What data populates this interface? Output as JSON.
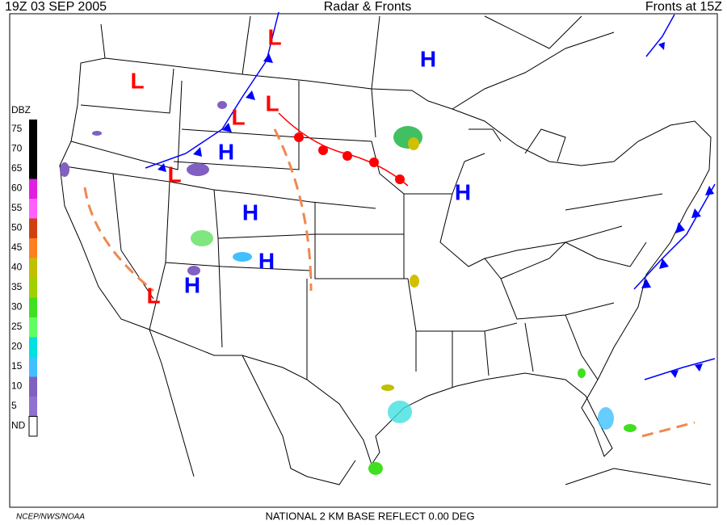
{
  "header": {
    "time": "19Z  03 SEP  2005",
    "title": "Radar & Fronts",
    "fronts": "Fronts at 15Z"
  },
  "legend": {
    "title": "DBZ",
    "labels": [
      75,
      70,
      65,
      60,
      55,
      50,
      45,
      40,
      35,
      30,
      25,
      20,
      15,
      10,
      5,
      "ND"
    ],
    "colors": [
      "#000000",
      "#000000",
      "#000000",
      "#e020e0",
      "#ff60ff",
      "#d04010",
      "#ff7f20",
      "#c0c000",
      "#a0d000",
      "#40e020",
      "#60ff60",
      "#00e0e0",
      "#40c0ff",
      "#8060c0",
      "#9070d0",
      "#ffffff"
    ]
  },
  "centers": [
    {
      "label": "L"
    },
    {
      "label": "L"
    },
    {
      "label": "L"
    },
    {
      "label": "L"
    },
    {
      "label": "L"
    },
    {
      "label": "L"
    },
    {
      "label": "H"
    },
    {
      "label": "H"
    },
    {
      "label": "H"
    },
    {
      "label": "H"
    },
    {
      "label": "H"
    },
    {
      "label": "H"
    }
  ],
  "footer": {
    "credit": "NCEP/NWS/NOAA",
    "product": "NATIONAL 2 KM BASE REFLECT 0.00 DEG"
  }
}
